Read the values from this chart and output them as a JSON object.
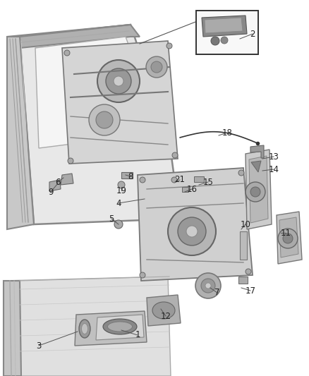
{
  "background_color": "#ffffff",
  "figsize": [
    4.38,
    5.33
  ],
  "dpi": 100,
  "line_color": "#555555",
  "label_color": "#222222",
  "font_size": 8.5,
  "leader_lines": [
    [
      "1",
      [
        195,
        475
      ],
      [
        172,
        468
      ]
    ],
    [
      "2",
      [
        358,
        48
      ],
      [
        340,
        55
      ]
    ],
    [
      "3",
      [
        55,
        490
      ],
      [
        110,
        470
      ]
    ],
    [
      "4",
      [
        168,
        288
      ],
      [
        205,
        282
      ]
    ],
    [
      "5",
      [
        158,
        310
      ],
      [
        168,
        318
      ]
    ],
    [
      "6",
      [
        82,
        258
      ],
      [
        90,
        252
      ]
    ],
    [
      "7",
      [
        308,
        415
      ],
      [
        298,
        408
      ]
    ],
    [
      "8",
      [
        185,
        250
      ],
      [
        178,
        248
      ]
    ],
    [
      "9",
      [
        72,
        272
      ],
      [
        82,
        260
      ]
    ],
    [
      "10",
      [
        348,
        318
      ],
      [
        342,
        325
      ]
    ],
    [
      "11",
      [
        405,
        330
      ],
      [
        398,
        330
      ]
    ],
    [
      "12",
      [
        235,
        448
      ],
      [
        228,
        438
      ]
    ],
    [
      "13",
      [
        388,
        222
      ],
      [
        372,
        225
      ]
    ],
    [
      "14",
      [
        388,
        240
      ],
      [
        372,
        242
      ]
    ],
    [
      "15",
      [
        295,
        258
      ],
      [
        282,
        262
      ]
    ],
    [
      "16",
      [
        272,
        268
      ],
      [
        262,
        272
      ]
    ],
    [
      "17",
      [
        355,
        412
      ],
      [
        342,
        408
      ]
    ],
    [
      "18",
      [
        322,
        188
      ],
      [
        310,
        192
      ]
    ],
    [
      "19",
      [
        172,
        270
      ],
      [
        172,
        265
      ]
    ],
    [
      "21",
      [
        255,
        255
      ],
      [
        248,
        258
      ]
    ]
  ]
}
